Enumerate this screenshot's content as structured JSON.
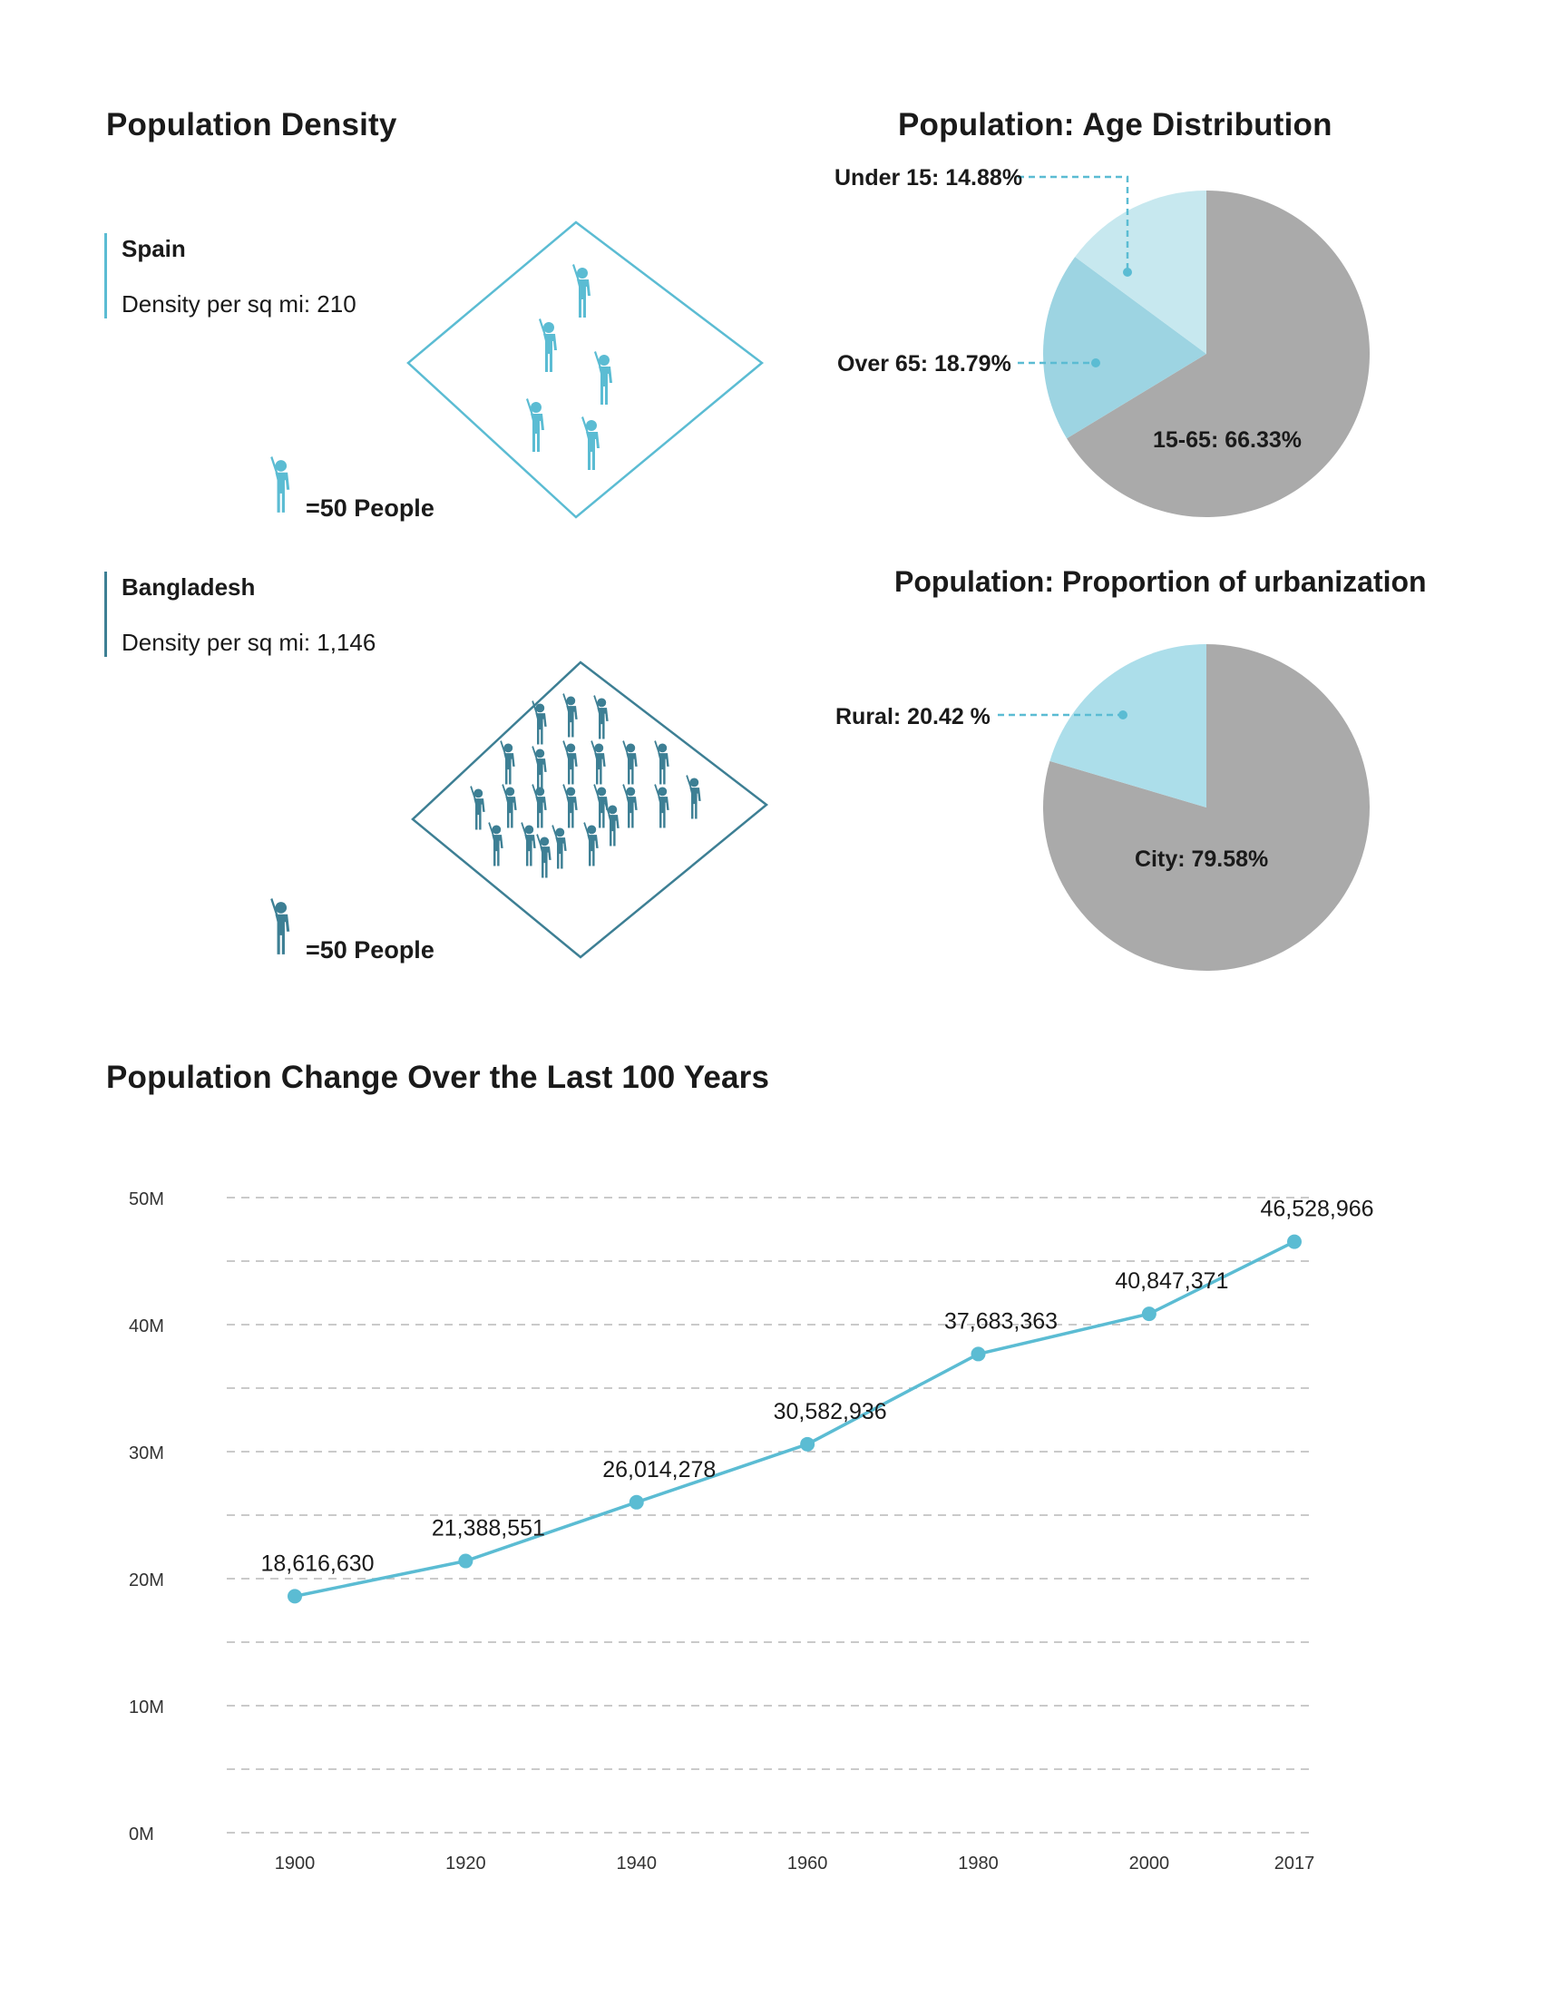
{
  "density": {
    "title": "Population Density",
    "countries": [
      {
        "name": "Spain",
        "density_label": "Density per sq mi: 210",
        "legend": "=50 People",
        "color": "#5bbcd3",
        "figures": 5
      },
      {
        "name": "Bangladesh",
        "density_label": "Density per sq mi: 1,146",
        "legend": "=50 People",
        "color": "#3d7f94",
        "figures": 23
      }
    ]
  },
  "chart_data": [
    {
      "type": "pie",
      "title": "Population: Age Distribution",
      "slices": [
        {
          "label": "15-65: 66.33%",
          "name": "15-65",
          "value": 66.33,
          "color": "#aaaaaa"
        },
        {
          "label": "Over 65: 18.79%",
          "name": "Over 65",
          "value": 18.79,
          "color": "#9dd4e2"
        },
        {
          "label": "Under 15: 14.88%",
          "name": "Under 15",
          "value": 14.88,
          "color": "#c7e8ef"
        }
      ]
    },
    {
      "type": "pie",
      "title": "Population: Proportion of urbanization",
      "slices": [
        {
          "label": "City: 79.58%",
          "name": "City",
          "value": 79.58,
          "color": "#aaaaaa"
        },
        {
          "label": "Rural: 20.42 %",
          "name": "Rural",
          "value": 20.42,
          "color": "#acdeea"
        }
      ]
    },
    {
      "type": "line",
      "title": "Population Change Over the Last 100 Years",
      "x": [
        "1900",
        "1920",
        "1940",
        "1960",
        "1980",
        "2000",
        "2017"
      ],
      "values": [
        18616630,
        21388551,
        26014278,
        30582936,
        37683363,
        40847371,
        46528966
      ],
      "value_labels": [
        "18,616,630",
        "21,388,551",
        "26,014,278",
        "30,582,936",
        "37,683,363",
        "40,847,371",
        "46,528,966"
      ],
      "y_ticks": [
        "0M",
        "10M",
        "20M",
        "30M",
        "40M",
        "50M"
      ],
      "ylim": [
        0,
        50000000
      ],
      "line_color": "#5bbcd3",
      "grid": "dashed"
    }
  ]
}
